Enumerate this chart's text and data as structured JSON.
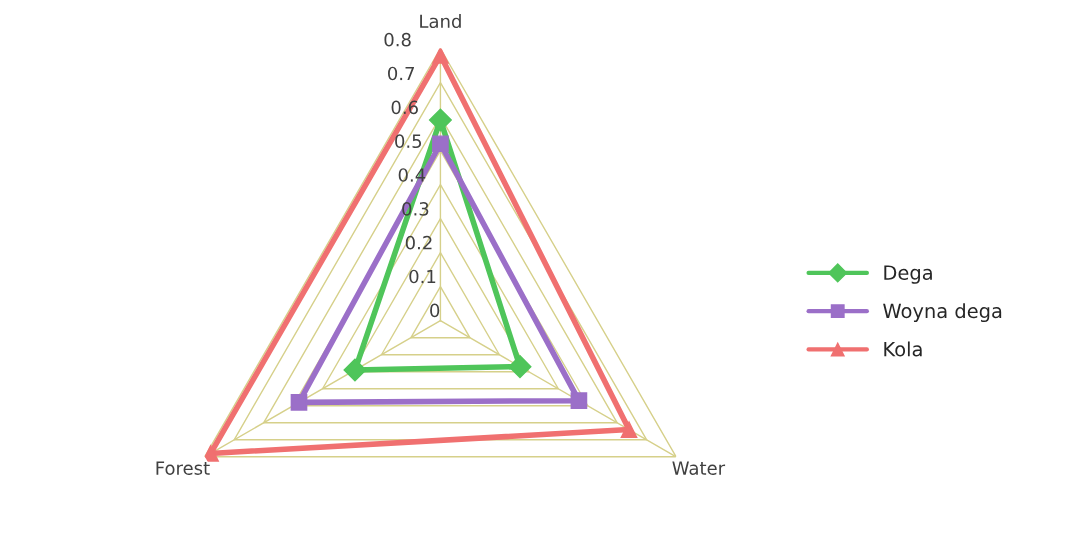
{
  "chart_data": {
    "type": "radar",
    "categories": [
      "Land",
      "Water",
      "Forest"
    ],
    "series": [
      {
        "name": "Dega",
        "color": "#4fc55a",
        "values": [
          0.59,
          0.27,
          0.29
        ],
        "marker": "diamond"
      },
      {
        "name": "Woyna dega",
        "color": "#9b6fc8",
        "values": [
          0.52,
          0.47,
          0.48
        ],
        "marker": "square"
      },
      {
        "name": "Kola",
        "color": "#f07070",
        "values": [
          0.78,
          0.64,
          0.78
        ],
        "marker": "triangle"
      }
    ],
    "ylim": [
      0,
      0.8
    ],
    "yticks": [
      0,
      0.1,
      0.2,
      0.3,
      0.4,
      0.5,
      0.6,
      0.7,
      0.8
    ],
    "grid": true,
    "legend": "right"
  }
}
